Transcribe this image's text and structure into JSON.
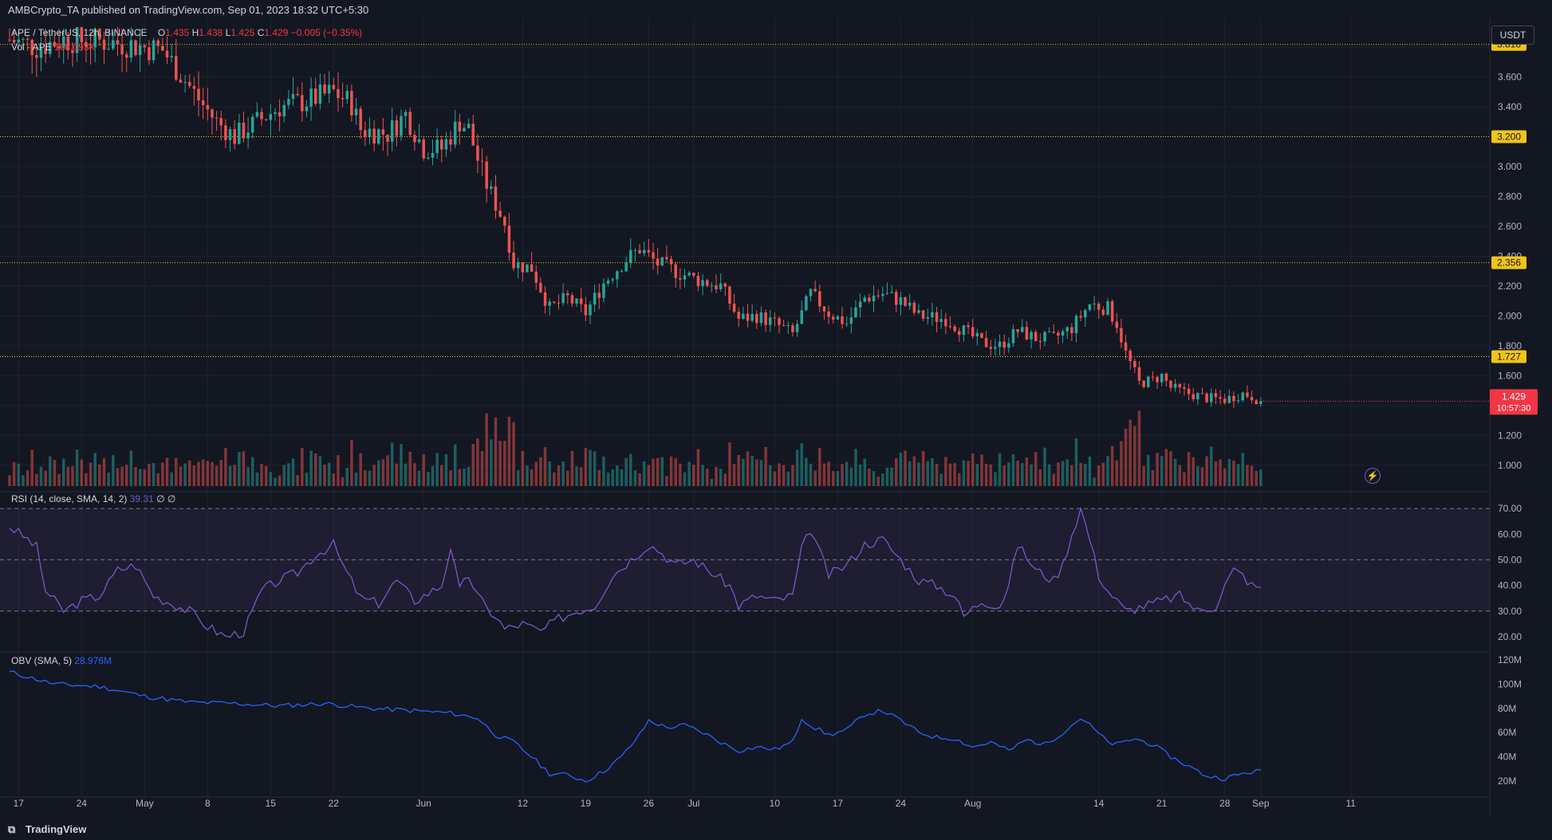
{
  "header": {
    "published": "AMBCrypto_TA published on TradingView.com, Sep 01, 2023 18:32 UTC+5:30",
    "symbol": "APE / TetherUS, 12h, BINANCE",
    "ohlc": {
      "o_label": "O",
      "o": "1.435",
      "h_label": "H",
      "h": "1.438",
      "l_label": "L",
      "l": "1.425",
      "c_label": "C",
      "c": "1.429",
      "change": "−0.005 (−0.35%)"
    },
    "vol_label": "Vol · APE",
    "vol_value": "168.093K",
    "currency": "USDT"
  },
  "rsi_legend": {
    "label": "RSI (14, close, SMA, 14, 2)",
    "value": "39.31",
    "extra": "∅ ∅"
  },
  "obv_legend": {
    "label": "OBV (SMA, 5)",
    "value": "28.976M"
  },
  "footer": {
    "brand": "TradingView"
  },
  "colors": {
    "bg": "#131722",
    "up": "#26a69a",
    "down": "#ef5350",
    "level": "#f0c419",
    "rsi": "#7e57c2",
    "obv": "#2962ff",
    "grid": "#1e222d"
  },
  "chart_data": [
    {
      "type": "candlestick",
      "y_ticks": [
        "1.000",
        "1.200",
        "1.400",
        "1.600",
        "1.800",
        "2.000",
        "2.200",
        "2.400",
        "2.600",
        "2.800",
        "3.000",
        "3.200",
        "3.400",
        "3.600",
        "3.800"
      ],
      "ylim": [
        0.86,
        3.87
      ],
      "levels": [
        {
          "value": 3.818,
          "label": "3.818"
        },
        {
          "value": 3.2,
          "label": "3.200"
        },
        {
          "value": 2.356,
          "label": "2.356"
        },
        {
          "value": 1.727,
          "label": "1.727"
        }
      ],
      "last_price": {
        "value": 1.429,
        "label": "1.429",
        "countdown": "10:57:30"
      },
      "x_ticks": [
        {
          "label": "17",
          "idx": 2
        },
        {
          "label": "24",
          "idx": 16
        },
        {
          "label": "May",
          "idx": 30
        },
        {
          "label": "8",
          "idx": 44
        },
        {
          "label": "15",
          "idx": 58
        },
        {
          "label": "22",
          "idx": 72
        },
        {
          "label": "Jun",
          "idx": 92
        },
        {
          "label": "12",
          "idx": 114
        },
        {
          "label": "19",
          "idx": 128
        },
        {
          "label": "26",
          "idx": 142
        },
        {
          "label": "Jul",
          "idx": 152
        },
        {
          "label": "10",
          "idx": 170
        },
        {
          "label": "17",
          "idx": 184
        },
        {
          "label": "24",
          "idx": 198
        },
        {
          "label": "Aug",
          "idx": 214
        },
        {
          "label": "14",
          "idx": 242
        },
        {
          "label": "21",
          "idx": 256
        },
        {
          "label": "28",
          "idx": 270
        },
        {
          "label": "Sep",
          "idx": 278
        },
        {
          "label": "11",
          "idx": 298
        }
      ],
      "key_closes": [
        [
          0,
          3.85
        ],
        [
          6,
          3.8
        ],
        [
          12,
          3.85
        ],
        [
          20,
          3.84
        ],
        [
          26,
          3.82
        ],
        [
          34,
          3.78
        ],
        [
          38,
          3.62
        ],
        [
          42,
          3.45
        ],
        [
          46,
          3.3
        ],
        [
          50,
          3.2
        ],
        [
          54,
          3.28
        ],
        [
          60,
          3.4
        ],
        [
          66,
          3.44
        ],
        [
          72,
          3.5
        ],
        [
          76,
          3.42
        ],
        [
          78,
          3.25
        ],
        [
          84,
          3.22
        ],
        [
          88,
          3.35
        ],
        [
          92,
          3.12
        ],
        [
          96,
          3.12
        ],
        [
          100,
          3.3
        ],
        [
          102,
          3.25
        ],
        [
          104,
          3.05
        ],
        [
          106,
          2.88
        ],
        [
          110,
          2.62
        ],
        [
          112,
          2.35
        ],
        [
          116,
          2.32
        ],
        [
          120,
          2.05
        ],
        [
          124,
          2.12
        ],
        [
          128,
          2.02
        ],
        [
          132,
          2.22
        ],
        [
          136,
          2.35
        ],
        [
          140,
          2.45
        ],
        [
          144,
          2.35
        ],
        [
          148,
          2.3
        ],
        [
          152,
          2.25
        ],
        [
          158,
          2.2
        ],
        [
          162,
          1.98
        ],
        [
          166,
          2.0
        ],
        [
          170,
          1.95
        ],
        [
          174,
          1.88
        ],
        [
          178,
          2.15
        ],
        [
          182,
          2.02
        ],
        [
          186,
          1.95
        ],
        [
          190,
          2.12
        ],
        [
          194,
          2.15
        ],
        [
          198,
          2.1
        ],
        [
          202,
          2.0
        ],
        [
          208,
          1.98
        ],
        [
          212,
          1.9
        ],
        [
          216,
          1.82
        ],
        [
          220,
          1.8
        ],
        [
          224,
          1.9
        ],
        [
          228,
          1.85
        ],
        [
          232,
          1.85
        ],
        [
          236,
          1.92
        ],
        [
          240,
          2.08
        ],
        [
          244,
          2.05
        ],
        [
          246,
          1.95
        ],
        [
          248,
          1.75
        ],
        [
          250,
          1.62
        ],
        [
          251,
          1.55
        ],
        [
          254,
          1.57
        ],
        [
          256,
          1.6
        ],
        [
          258,
          1.52
        ],
        [
          262,
          1.48
        ],
        [
          266,
          1.45
        ],
        [
          270,
          1.44
        ],
        [
          274,
          1.48
        ],
        [
          276,
          1.46
        ],
        [
          278,
          1.43
        ]
      ],
      "volume_max": "≈ 180M (relative bars)"
    },
    {
      "type": "line",
      "name": "RSI",
      "y_ticks": [
        "20.00",
        "30.00",
        "40.00",
        "50.00",
        "60.00",
        "70.00"
      ],
      "ylim": [
        15,
        75
      ],
      "bands": [
        30,
        50,
        70
      ],
      "points": [
        [
          0,
          63
        ],
        [
          4,
          58
        ],
        [
          6,
          55
        ],
        [
          8,
          38
        ],
        [
          12,
          30
        ],
        [
          16,
          34
        ],
        [
          20,
          36
        ],
        [
          24,
          46
        ],
        [
          28,
          48
        ],
        [
          32,
          36
        ],
        [
          36,
          33
        ],
        [
          40,
          30
        ],
        [
          44,
          24
        ],
        [
          48,
          20
        ],
        [
          52,
          22
        ],
        [
          56,
          38
        ],
        [
          60,
          42
        ],
        [
          64,
          45
        ],
        [
          68,
          52
        ],
        [
          72,
          56
        ],
        [
          74,
          48
        ],
        [
          78,
          35
        ],
        [
          82,
          33
        ],
        [
          86,
          42
        ],
        [
          90,
          34
        ],
        [
          96,
          40
        ],
        [
          98,
          55
        ],
        [
          100,
          38
        ],
        [
          102,
          44
        ],
        [
          104,
          36
        ],
        [
          106,
          31
        ],
        [
          108,
          28
        ],
        [
          110,
          23
        ],
        [
          114,
          25
        ],
        [
          118,
          22
        ],
        [
          122,
          27
        ],
        [
          126,
          30
        ],
        [
          130,
          32
        ],
        [
          134,
          44
        ],
        [
          138,
          50
        ],
        [
          142,
          56
        ],
        [
          144,
          54
        ],
        [
          148,
          48
        ],
        [
          152,
          50
        ],
        [
          156,
          45
        ],
        [
          160,
          40
        ],
        [
          162,
          32
        ],
        [
          166,
          36
        ],
        [
          170,
          34
        ],
        [
          174,
          36
        ],
        [
          176,
          54
        ],
        [
          178,
          62
        ],
        [
          182,
          44
        ],
        [
          186,
          48
        ],
        [
          190,
          56
        ],
        [
          194,
          58
        ],
        [
          198,
          50
        ],
        [
          202,
          42
        ],
        [
          206,
          40
        ],
        [
          210,
          36
        ],
        [
          212,
          28
        ],
        [
          216,
          34
        ],
        [
          220,
          32
        ],
        [
          222,
          40
        ],
        [
          224,
          56
        ],
        [
          228,
          46
        ],
        [
          232,
          42
        ],
        [
          234,
          48
        ],
        [
          236,
          60
        ],
        [
          238,
          70
        ],
        [
          240,
          58
        ],
        [
          242,
          44
        ],
        [
          244,
          38
        ],
        [
          246,
          34
        ],
        [
          248,
          30
        ],
        [
          252,
          32
        ],
        [
          256,
          34
        ],
        [
          260,
          36
        ],
        [
          264,
          30
        ],
        [
          268,
          32
        ],
        [
          270,
          40
        ],
        [
          272,
          46
        ],
        [
          274,
          44
        ],
        [
          276,
          40
        ],
        [
          278,
          39.31
        ]
      ]
    },
    {
      "type": "line",
      "name": "OBV",
      "y_ticks": [
        "20M",
        "40M",
        "60M",
        "80M",
        "100M",
        "120M"
      ],
      "ylim": [
        12,
        122
      ],
      "points": [
        [
          0,
          110
        ],
        [
          10,
          100
        ],
        [
          20,
          98
        ],
        [
          30,
          90
        ],
        [
          40,
          85
        ],
        [
          50,
          84
        ],
        [
          60,
          82
        ],
        [
          70,
          84
        ],
        [
          80,
          80
        ],
        [
          90,
          78
        ],
        [
          98,
          76
        ],
        [
          104,
          72
        ],
        [
          108,
          58
        ],
        [
          112,
          52
        ],
        [
          116,
          40
        ],
        [
          120,
          26
        ],
        [
          124,
          25
        ],
        [
          128,
          20
        ],
        [
          132,
          28
        ],
        [
          136,
          40
        ],
        [
          140,
          58
        ],
        [
          142,
          70
        ],
        [
          146,
          64
        ],
        [
          150,
          66
        ],
        [
          154,
          60
        ],
        [
          158,
          52
        ],
        [
          162,
          45
        ],
        [
          166,
          48
        ],
        [
          170,
          46
        ],
        [
          174,
          52
        ],
        [
          176,
          72
        ],
        [
          178,
          66
        ],
        [
          182,
          58
        ],
        [
          186,
          62
        ],
        [
          190,
          75
        ],
        [
          194,
          78
        ],
        [
          198,
          70
        ],
        [
          202,
          60
        ],
        [
          206,
          56
        ],
        [
          210,
          55
        ],
        [
          214,
          48
        ],
        [
          218,
          52
        ],
        [
          222,
          45
        ],
        [
          226,
          54
        ],
        [
          230,
          50
        ],
        [
          234,
          60
        ],
        [
          238,
          72
        ],
        [
          240,
          66
        ],
        [
          244,
          52
        ],
        [
          246,
          50
        ],
        [
          250,
          55
        ],
        [
          254,
          50
        ],
        [
          258,
          40
        ],
        [
          262,
          32
        ],
        [
          266,
          24
        ],
        [
          270,
          22
        ],
        [
          274,
          26
        ],
        [
          278,
          29
        ]
      ]
    }
  ]
}
